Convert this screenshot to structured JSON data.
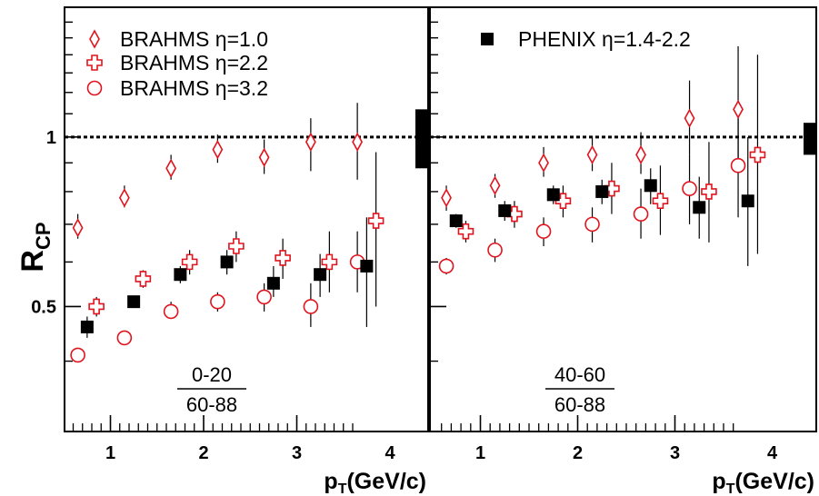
{
  "chart_data": {
    "type": "scatter",
    "y_axis": {
      "label_main": "R",
      "label_sub": "CP",
      "scale": "log",
      "range": [
        0.3,
        1.7
      ],
      "tick_labels": [
        "0.5",
        "1"
      ]
    },
    "x_axis": {
      "label_main": "p",
      "label_sub": "T",
      "label_rest": "(GeV/c)",
      "range": [
        0.55,
        4.45
      ],
      "tick_labels": [
        "1",
        "2",
        "3",
        "4"
      ]
    },
    "reference_line": 1.0,
    "legend": [
      {
        "name": "BRAHMS η=1.0",
        "marker": "open-diamond",
        "color": "#e0141e"
      },
      {
        "name": "BRAHMS η=2.2",
        "marker": "open-cross",
        "color": "#e0141e"
      },
      {
        "name": "BRAHMS η=3.2",
        "marker": "open-circle",
        "color": "#e0141e"
      },
      {
        "name": "PHENIX η=1.4-2.2",
        "marker": "filled-square",
        "color": "#000000"
      }
    ],
    "panels": [
      {
        "id": "central",
        "ratio_numerator": "0-20",
        "ratio_denominator": "60-88",
        "norm_band": [
          0.88,
          1.12
        ],
        "series": [
          {
            "name": "BRAHMS η=1.0",
            "marker": "open-diamond",
            "color": "#e0141e",
            "points": [
              {
                "x": 0.65,
                "y": 0.69,
                "lo": 0.66,
                "hi": 0.73
              },
              {
                "x": 1.15,
                "y": 0.78,
                "lo": 0.75,
                "hi": 0.82
              },
              {
                "x": 1.65,
                "y": 0.88,
                "lo": 0.84,
                "hi": 0.93
              },
              {
                "x": 2.15,
                "y": 0.95,
                "lo": 0.9,
                "hi": 1.01
              },
              {
                "x": 2.65,
                "y": 0.92,
                "lo": 0.86,
                "hi": 0.99
              },
              {
                "x": 3.15,
                "y": 0.98,
                "lo": 0.87,
                "hi": 1.08
              },
              {
                "x": 3.65,
                "y": 0.98,
                "lo": 0.84,
                "hi": 1.15
              }
            ]
          },
          {
            "name": "BRAHMS η=2.2",
            "marker": "open-cross",
            "color": "#e0141e",
            "points": [
              {
                "x": 0.85,
                "y": 0.5,
                "lo": 0.48,
                "hi": 0.52
              },
              {
                "x": 1.35,
                "y": 0.56,
                "lo": 0.54,
                "hi": 0.58
              },
              {
                "x": 1.85,
                "y": 0.6,
                "lo": 0.57,
                "hi": 0.63
              },
              {
                "x": 2.35,
                "y": 0.64,
                "lo": 0.6,
                "hi": 0.68
              },
              {
                "x": 2.85,
                "y": 0.61,
                "lo": 0.56,
                "hi": 0.66
              },
              {
                "x": 3.35,
                "y": 0.6,
                "lo": 0.53,
                "hi": 0.68
              },
              {
                "x": 3.85,
                "y": 0.71,
                "lo": 0.5,
                "hi": 0.94
              }
            ]
          },
          {
            "name": "BRAHMS η=3.2",
            "marker": "open-circle",
            "color": "#e0141e",
            "points": [
              {
                "x": 0.65,
                "y": 0.41,
                "lo": 0.4,
                "hi": 0.42
              },
              {
                "x": 1.15,
                "y": 0.44,
                "lo": 0.43,
                "hi": 0.45
              },
              {
                "x": 1.65,
                "y": 0.49,
                "lo": 0.48,
                "hi": 0.51
              },
              {
                "x": 2.15,
                "y": 0.51,
                "lo": 0.49,
                "hi": 0.53
              },
              {
                "x": 2.65,
                "y": 0.52,
                "lo": 0.49,
                "hi": 0.55
              },
              {
                "x": 3.15,
                "y": 0.5,
                "lo": 0.46,
                "hi": 0.55
              },
              {
                "x": 3.65,
                "y": 0.6,
                "lo": 0.53,
                "hi": 0.68
              }
            ]
          },
          {
            "name": "PHENIX η=1.4-2.2",
            "marker": "filled-square",
            "color": "#000000",
            "points": [
              {
                "x": 0.75,
                "y": 0.46,
                "lo": 0.44,
                "hi": 0.48
              },
              {
                "x": 1.25,
                "y": 0.51,
                "lo": 0.5,
                "hi": 0.52
              },
              {
                "x": 1.75,
                "y": 0.57,
                "lo": 0.55,
                "hi": 0.59
              },
              {
                "x": 2.25,
                "y": 0.6,
                "lo": 0.57,
                "hi": 0.63
              },
              {
                "x": 2.75,
                "y": 0.55,
                "lo": 0.52,
                "hi": 0.59
              },
              {
                "x": 3.25,
                "y": 0.57,
                "lo": 0.52,
                "hi": 0.62
              },
              {
                "x": 3.75,
                "y": 0.59,
                "lo": 0.46,
                "hi": 0.72
              }
            ]
          }
        ]
      },
      {
        "id": "semi-central",
        "ratio_numerator": "40-60",
        "ratio_denominator": "60-88",
        "norm_band": [
          0.93,
          1.06
        ],
        "series": [
          {
            "name": "BRAHMS η=1.0",
            "marker": "open-diamond",
            "color": "#e0141e",
            "points": [
              {
                "x": 0.65,
                "y": 0.78,
                "lo": 0.74,
                "hi": 0.82
              },
              {
                "x": 1.15,
                "y": 0.82,
                "lo": 0.78,
                "hi": 0.86
              },
              {
                "x": 1.65,
                "y": 0.9,
                "lo": 0.85,
                "hi": 0.96
              },
              {
                "x": 2.15,
                "y": 0.93,
                "lo": 0.87,
                "hi": 1.0
              },
              {
                "x": 2.65,
                "y": 0.93,
                "lo": 0.86,
                "hi": 1.02
              },
              {
                "x": 3.15,
                "y": 1.08,
                "lo": 0.93,
                "hi": 1.26
              },
              {
                "x": 3.65,
                "y": 1.12,
                "lo": 0.9,
                "hi": 1.45
              }
            ]
          },
          {
            "name": "BRAHMS η=2.2",
            "marker": "open-cross",
            "color": "#e0141e",
            "points": [
              {
                "x": 0.85,
                "y": 0.68,
                "lo": 0.65,
                "hi": 0.71
              },
              {
                "x": 1.35,
                "y": 0.73,
                "lo": 0.69,
                "hi": 0.77
              },
              {
                "x": 1.85,
                "y": 0.77,
                "lo": 0.72,
                "hi": 0.82
              },
              {
                "x": 2.35,
                "y": 0.81,
                "lo": 0.73,
                "hi": 0.9
              },
              {
                "x": 2.85,
                "y": 0.77,
                "lo": 0.67,
                "hi": 0.89
              },
              {
                "x": 3.35,
                "y": 0.8,
                "lo": 0.65,
                "hi": 0.98
              },
              {
                "x": 3.85,
                "y": 0.93,
                "lo": 0.62,
                "hi": 1.4
              }
            ]
          },
          {
            "name": "BRAHMS η=3.2",
            "marker": "open-circle",
            "color": "#e0141e",
            "points": [
              {
                "x": 0.65,
                "y": 0.59,
                "lo": 0.57,
                "hi": 0.61
              },
              {
                "x": 1.15,
                "y": 0.63,
                "lo": 0.6,
                "hi": 0.66
              },
              {
                "x": 1.65,
                "y": 0.68,
                "lo": 0.64,
                "hi": 0.72
              },
              {
                "x": 2.15,
                "y": 0.7,
                "lo": 0.65,
                "hi": 0.75
              },
              {
                "x": 2.65,
                "y": 0.73,
                "lo": 0.66,
                "hi": 0.81
              },
              {
                "x": 3.15,
                "y": 0.81,
                "lo": 0.7,
                "hi": 0.93
              },
              {
                "x": 3.65,
                "y": 0.89,
                "lo": 0.72,
                "hi": 1.1
              }
            ]
          },
          {
            "name": "PHENIX η=1.4-2.2",
            "marker": "filled-square",
            "color": "#000000",
            "points": [
              {
                "x": 0.75,
                "y": 0.71,
                "lo": 0.69,
                "hi": 0.73
              },
              {
                "x": 1.25,
                "y": 0.74,
                "lo": 0.71,
                "hi": 0.77
              },
              {
                "x": 1.75,
                "y": 0.79,
                "lo": 0.76,
                "hi": 0.82
              },
              {
                "x": 2.25,
                "y": 0.8,
                "lo": 0.76,
                "hi": 0.84
              },
              {
                "x": 2.75,
                "y": 0.82,
                "lo": 0.76,
                "hi": 0.88
              },
              {
                "x": 3.25,
                "y": 0.75,
                "lo": 0.66,
                "hi": 0.85
              },
              {
                "x": 3.75,
                "y": 0.77,
                "lo": 0.59,
                "hi": 1.0
              }
            ]
          }
        ]
      }
    ]
  }
}
